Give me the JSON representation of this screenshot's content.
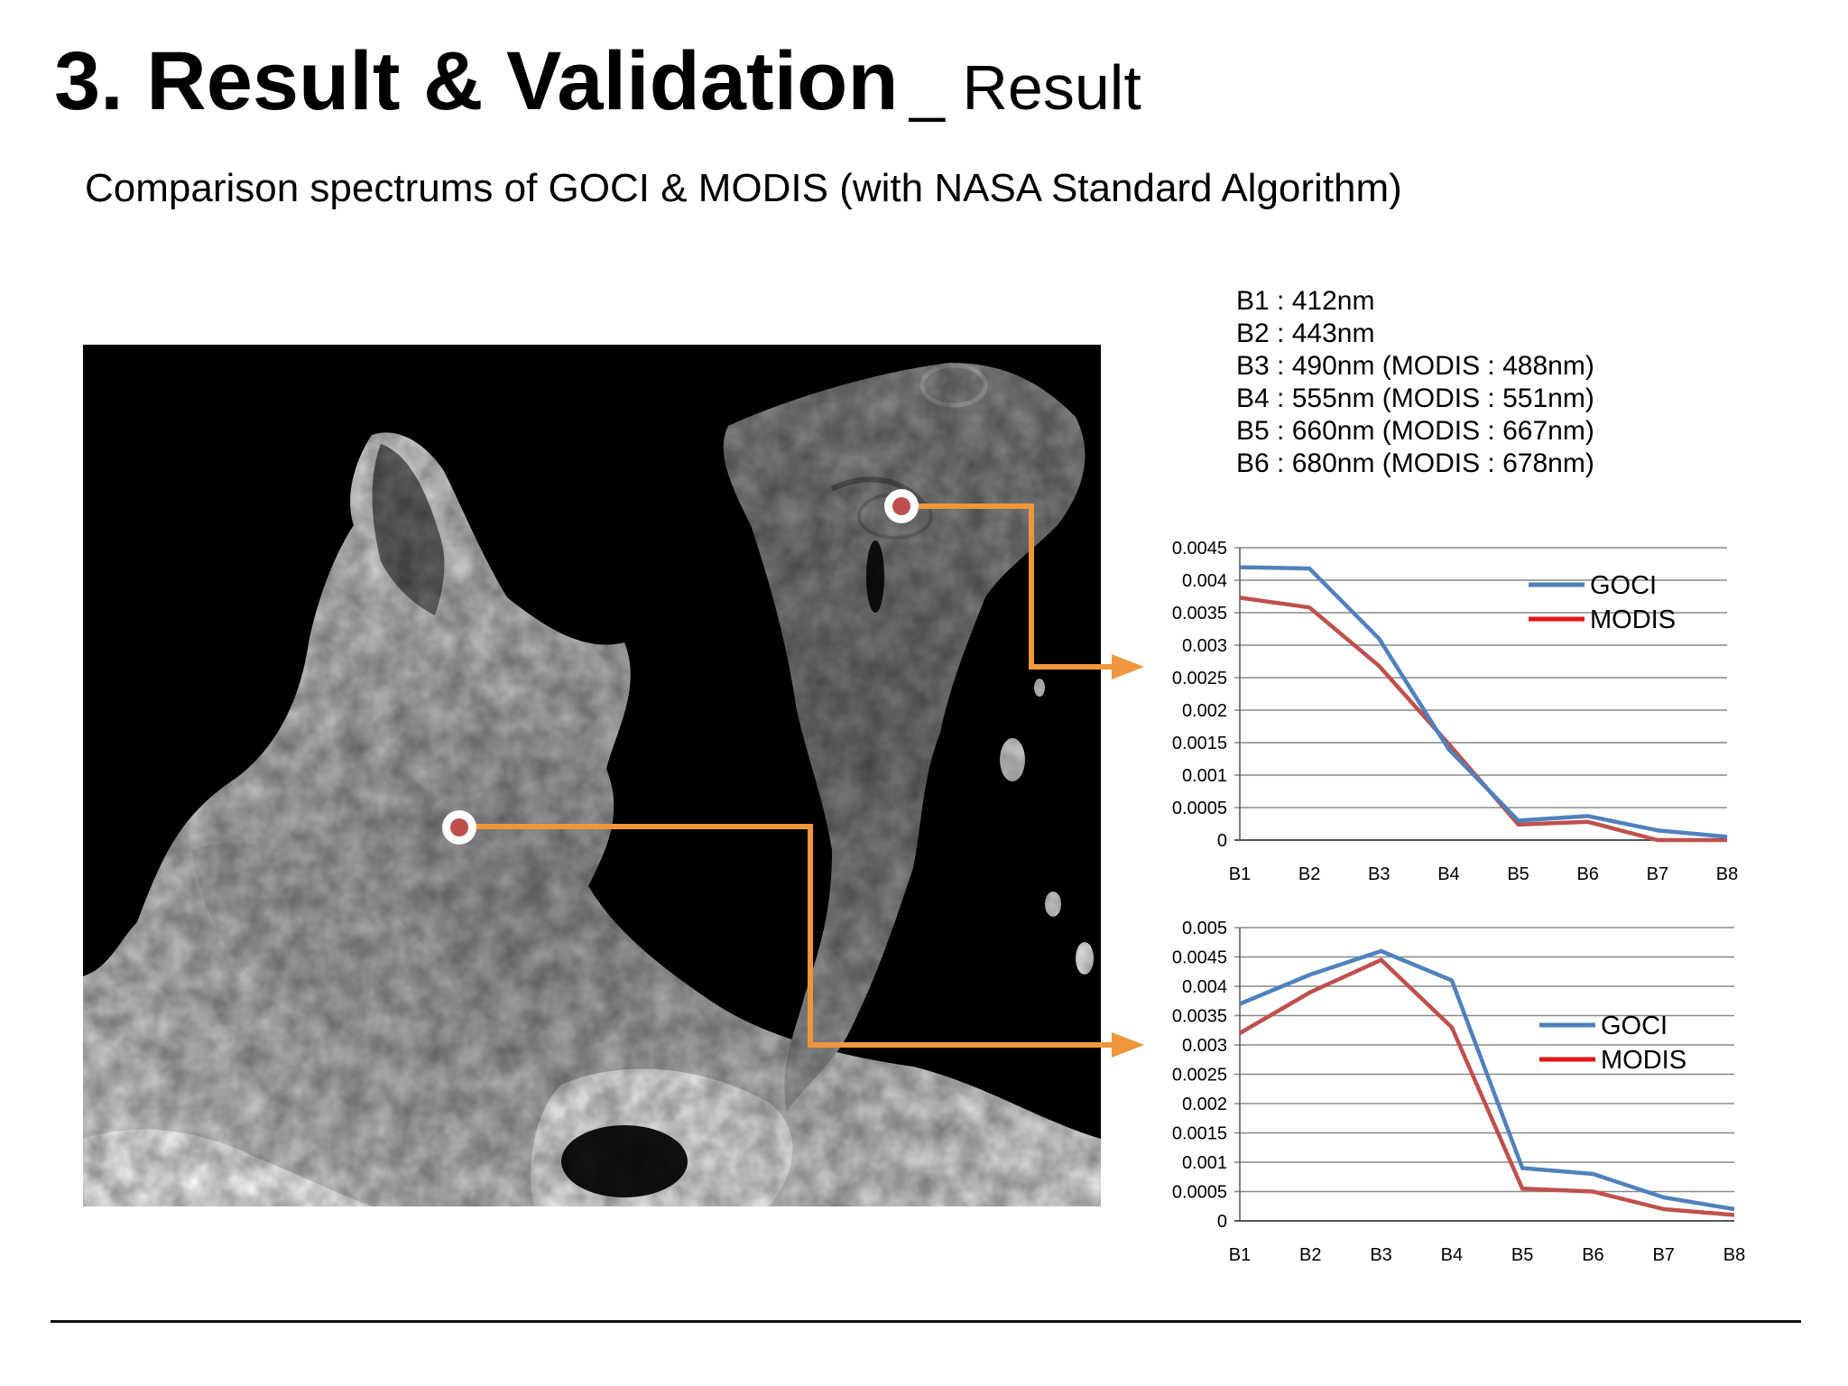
{
  "slide": {
    "title_main": "3. Result & Validation",
    "title_sub": "_ Result",
    "subtitle": "Comparison spectrums of GOCI & MODIS (with NASA Standard Algorithm)",
    "bands": [
      "B1 : 412nm",
      "B2 : 443nm",
      "B3 : 490nm (MODIS : 488nm)",
      "B4 : 555nm (MODIS : 551nm)",
      "B5 : 660nm (MODIS : 667nm)",
      "B6 : 680nm (MODIS : 678nm)"
    ]
  },
  "colors": {
    "goci": "#4f81bd",
    "modis": "#c0504d",
    "legend_modis": "#e8141a",
    "arrow": "#f0963c",
    "marker": "#c0504d",
    "grid": "#888888"
  },
  "chart_data": [
    {
      "type": "line",
      "categories": [
        "B1",
        "B2",
        "B3",
        "B4",
        "B5",
        "B6",
        "B7",
        "B8"
      ],
      "yticks": [
        "0",
        "0.0005",
        "0.001",
        "0.0015",
        "0.002",
        "0.0025",
        "0.003",
        "0.0035",
        "0.004",
        "0.0045"
      ],
      "ylim": [
        0,
        0.0045
      ],
      "grid": true,
      "legend": "top-right",
      "series": [
        {
          "name": "GOCI",
          "values": [
            0.0042,
            0.00418,
            0.0031,
            0.0014,
            0.0003,
            0.00037,
            0.00015,
            5e-05
          ]
        },
        {
          "name": "MODIS",
          "values": [
            0.00373,
            0.00358,
            0.00268,
            0.00148,
            0.00024,
            0.00028,
            0.0,
            0.0
          ]
        }
      ]
    },
    {
      "type": "line",
      "categories": [
        "B1",
        "B2",
        "B3",
        "B4",
        "B5",
        "B6",
        "B7",
        "B8"
      ],
      "yticks": [
        "0",
        "0.0005",
        "0.001",
        "0.0015",
        "0.002",
        "0.0025",
        "0.003",
        "0.0035",
        "0.004",
        "0.0045",
        "0.005"
      ],
      "ylim": [
        0,
        0.005
      ],
      "grid": true,
      "legend": "right",
      "series": [
        {
          "name": "GOCI",
          "values": [
            0.0037,
            0.0042,
            0.0046,
            0.0041,
            0.0009,
            0.0008,
            0.0004,
            0.0002
          ]
        },
        {
          "name": "MODIS",
          "values": [
            0.0032,
            0.0039,
            0.00445,
            0.0033,
            0.00055,
            0.0005,
            0.0002,
            0.0001
          ]
        }
      ]
    }
  ]
}
